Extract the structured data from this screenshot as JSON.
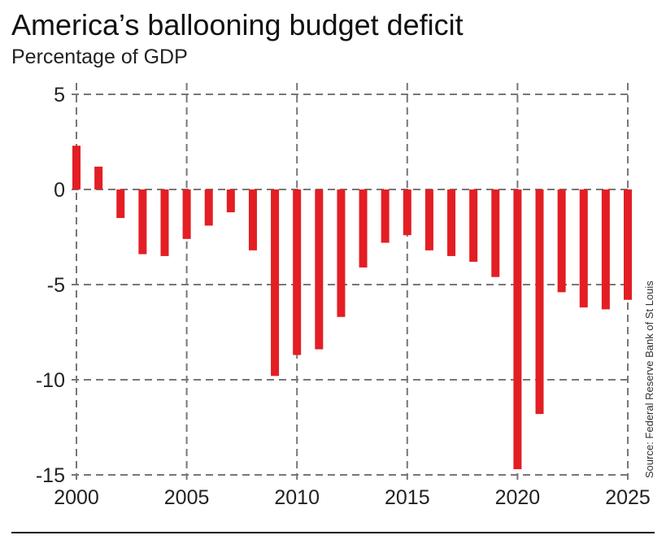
{
  "chart_data": {
    "type": "bar",
    "title": "America’s ballooning budget deficit",
    "subtitle": "Percentage of GDP",
    "source": "Source: Federal Reserve Bank of St Louis",
    "categories": [
      2000,
      2001,
      2002,
      2003,
      2004,
      2005,
      2006,
      2007,
      2008,
      2009,
      2010,
      2011,
      2012,
      2013,
      2014,
      2015,
      2016,
      2017,
      2018,
      2019,
      2020,
      2021,
      2022,
      2023,
      2024,
      2025
    ],
    "values": [
      2.3,
      1.2,
      -1.5,
      -3.4,
      -3.5,
      -2.6,
      -1.9,
      -1.2,
      -3.2,
      -9.8,
      -8.7,
      -8.4,
      -6.7,
      -4.1,
      -2.8,
      -2.4,
      -3.2,
      -3.5,
      -3.8,
      -4.6,
      -14.7,
      -11.8,
      -5.4,
      -6.2,
      -6.3,
      -5.8
    ],
    "ylim": [
      -15,
      5
    ],
    "xlim": [
      2000,
      2025
    ],
    "yticks": [
      5,
      0,
      -5,
      -10,
      -15
    ],
    "xticks": [
      2000,
      2005,
      2010,
      2015,
      2020,
      2025
    ],
    "grid": true,
    "bar_color": "#e31e24"
  }
}
